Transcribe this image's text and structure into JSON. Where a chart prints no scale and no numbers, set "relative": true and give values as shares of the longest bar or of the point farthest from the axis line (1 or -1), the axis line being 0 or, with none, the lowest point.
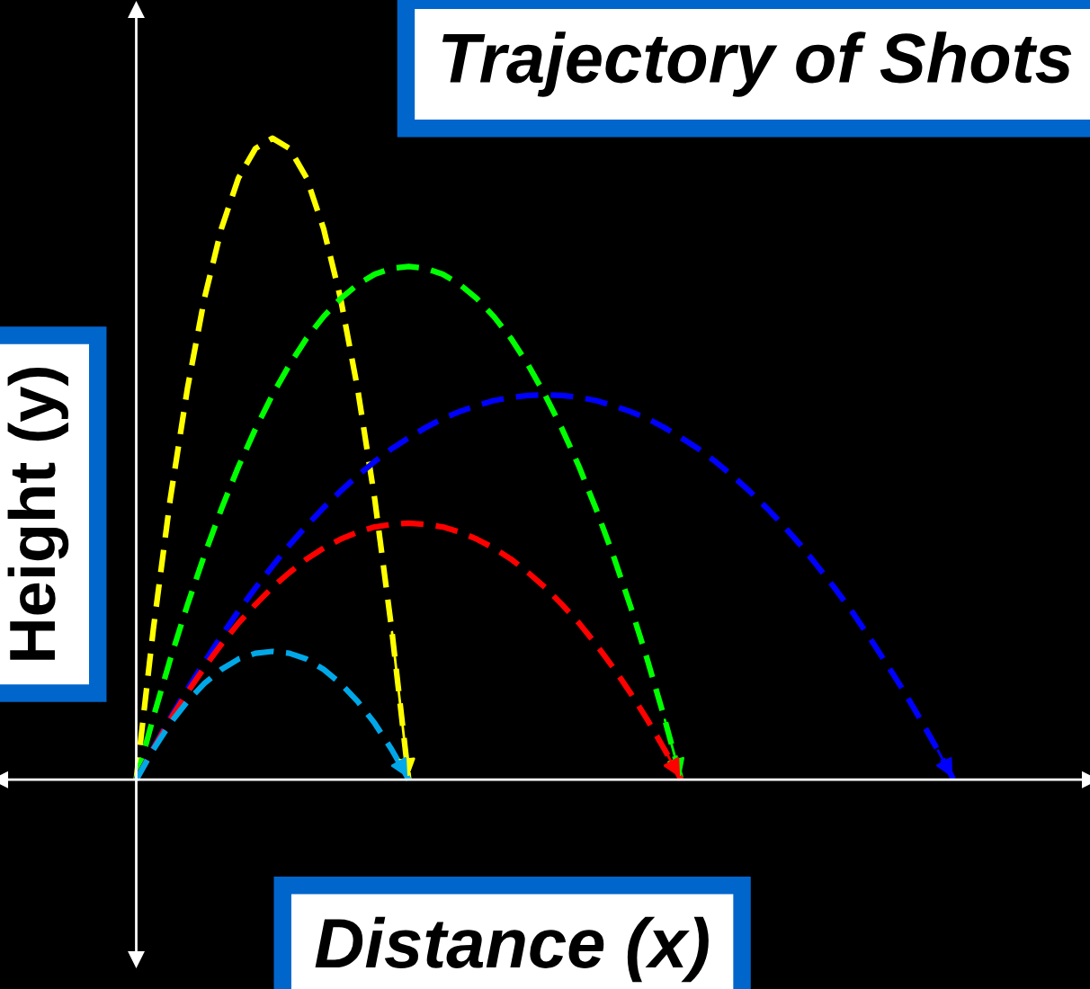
{
  "chart_data": {
    "type": "line",
    "title": "Trajectory of Shots",
    "xlabel": "Distance (x)",
    "ylabel": "Height (y)",
    "relative": true,
    "line_style": "dashed",
    "marker": "none",
    "legend": false,
    "categories": [
      null,
      null,
      null,
      null,
      null,
      null,
      null,
      null,
      null,
      null,
      null,
      null,
      null,
      null,
      null,
      null,
      null,
      null,
      null,
      null,
      null,
      null,
      null,
      null,
      null,
      null,
      null,
      null,
      null,
      null,
      null,
      null,
      null,
      null,
      null,
      null,
      null,
      null,
      null,
      null,
      null,
      null,
      null,
      null,
      null,
      null,
      null,
      null,
      null
    ],
    "series": [
      {
        "color": "#ffff00",
        "values": [
          0,
          0.234,
          0.438,
          0.609,
          0.75,
          0.859,
          0.938,
          0.984,
          1,
          0.984,
          0.938,
          0.859,
          0.75,
          0.609,
          0.438,
          0.234,
          0,
          null,
          null,
          null,
          null,
          null,
          null,
          null,
          null,
          null,
          null,
          null,
          null,
          null,
          null,
          null,
          null,
          null,
          null,
          null,
          null,
          null,
          null,
          null,
          null,
          null,
          null,
          null,
          null,
          null,
          null,
          null,
          null
        ]
      },
      {
        "color": "#00ff00",
        "values": [
          0,
          0.097,
          0.188,
          0.272,
          0.35,
          0.422,
          0.488,
          0.547,
          0.6,
          0.647,
          0.688,
          0.722,
          0.75,
          0.772,
          0.788,
          0.797,
          0.8,
          0.797,
          0.788,
          0.772,
          0.75,
          0.722,
          0.688,
          0.647,
          0.6,
          0.547,
          0.488,
          0.422,
          0.35,
          0.272,
          0.188,
          0.097,
          0,
          null,
          null,
          null,
          null,
          null,
          null,
          null,
          null,
          null,
          null,
          null,
          null,
          null,
          null,
          null,
          null
        ]
      },
      {
        "color": "#0000ff",
        "values": [
          0,
          0.049,
          0.096,
          0.141,
          0.183,
          0.224,
          0.263,
          0.299,
          0.333,
          0.366,
          0.396,
          0.424,
          0.45,
          0.474,
          0.496,
          0.516,
          0.533,
          0.549,
          0.563,
          0.574,
          0.583,
          0.591,
          0.596,
          0.599,
          0.6,
          0.599,
          0.596,
          0.591,
          0.583,
          0.574,
          0.563,
          0.549,
          0.533,
          0.516,
          0.496,
          0.474,
          0.45,
          0.424,
          0.396,
          0.366,
          0.333,
          0.299,
          0.263,
          0.224,
          0.183,
          0.141,
          0.096,
          0.049,
          0
        ]
      },
      {
        "color": "#ff0000",
        "values": [
          0,
          0.048,
          0.094,
          0.136,
          0.175,
          0.211,
          0.244,
          0.273,
          0.3,
          0.323,
          0.344,
          0.361,
          0.375,
          0.386,
          0.394,
          0.398,
          0.4,
          0.398,
          0.394,
          0.386,
          0.375,
          0.361,
          0.344,
          0.323,
          0.3,
          0.273,
          0.244,
          0.211,
          0.175,
          0.136,
          0.094,
          0.048,
          0,
          null,
          null,
          null,
          null,
          null,
          null,
          null,
          null,
          null,
          null,
          null,
          null,
          null,
          null,
          null,
          null
        ]
      },
      {
        "color": "#00a8e8",
        "values": [
          0,
          0.047,
          0.088,
          0.122,
          0.15,
          0.172,
          0.188,
          0.197,
          0.2,
          0.197,
          0.188,
          0.172,
          0.15,
          0.122,
          0.088,
          0.047,
          0,
          null,
          null,
          null,
          null,
          null,
          null,
          null,
          null,
          null,
          null,
          null,
          null,
          null,
          null,
          null,
          null,
          null,
          null,
          null,
          null,
          null,
          null,
          null,
          null,
          null,
          null,
          null,
          null,
          null,
          null,
          null,
          null
        ]
      }
    ]
  }
}
